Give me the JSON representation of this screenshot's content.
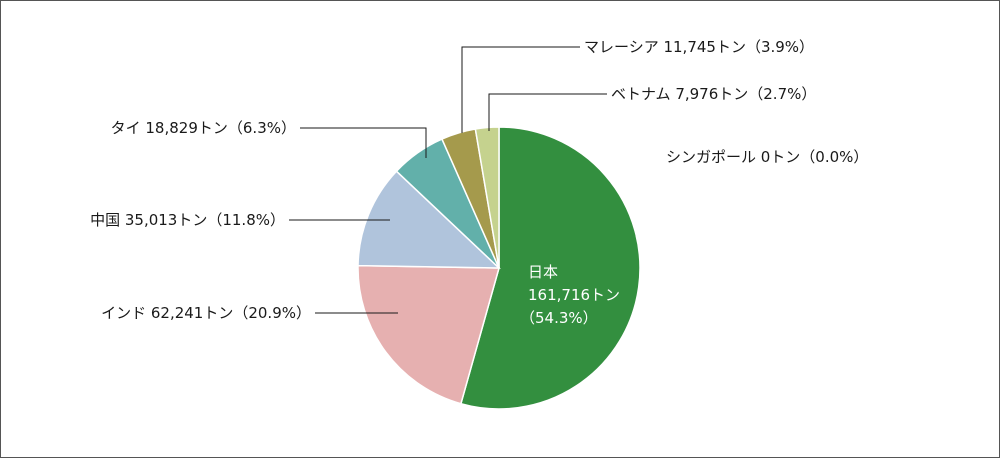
{
  "chart_data": {
    "type": "pie",
    "unit": "トン",
    "slices": [
      {
        "label": "日本",
        "value": 161716,
        "value_text": "161,716トン",
        "percent_text": "（54.3%）",
        "color": "#338f3f"
      },
      {
        "label": "インド",
        "value": 62241,
        "value_text": "62,241トン",
        "percent_text": "（20.9%）",
        "color": "#e6b0b0"
      },
      {
        "label": "中国",
        "value": 35013,
        "value_text": "35,013トン",
        "percent_text": "（11.8%）",
        "color": "#b0c4dc"
      },
      {
        "label": "タイ",
        "value": 18829,
        "value_text": "18,829トン",
        "percent_text": "（6.3%）",
        "color": "#62b0aa"
      },
      {
        "label": "マレーシア",
        "value": 11745,
        "value_text": "11,745トン",
        "percent_text": "（3.9%）",
        "color": "#a59a4c"
      },
      {
        "label": "ベトナム",
        "value": 7976,
        "value_text": "7,976トン",
        "percent_text": "（2.7%）",
        "color": "#c5d28e"
      },
      {
        "label": "シンガポール",
        "value": 0,
        "value_text": "0トン",
        "percent_text": "（0.0%）",
        "color": "#999999"
      }
    ]
  },
  "labels": {
    "japan_name": "日本",
    "japan_value": "161,716トン",
    "japan_percent": "（54.3%）",
    "india": "インド 62,241トン（20.9%）",
    "china": "中国 35,013トン（11.8%）",
    "thailand": "タイ 18,829トン（6.3%）",
    "malaysia": "マレーシア 11,745トン（3.9%）",
    "vietnam": "ベトナム 7,976トン（2.7%）",
    "singapore": "シンガポール 0トン（0.0%）"
  }
}
